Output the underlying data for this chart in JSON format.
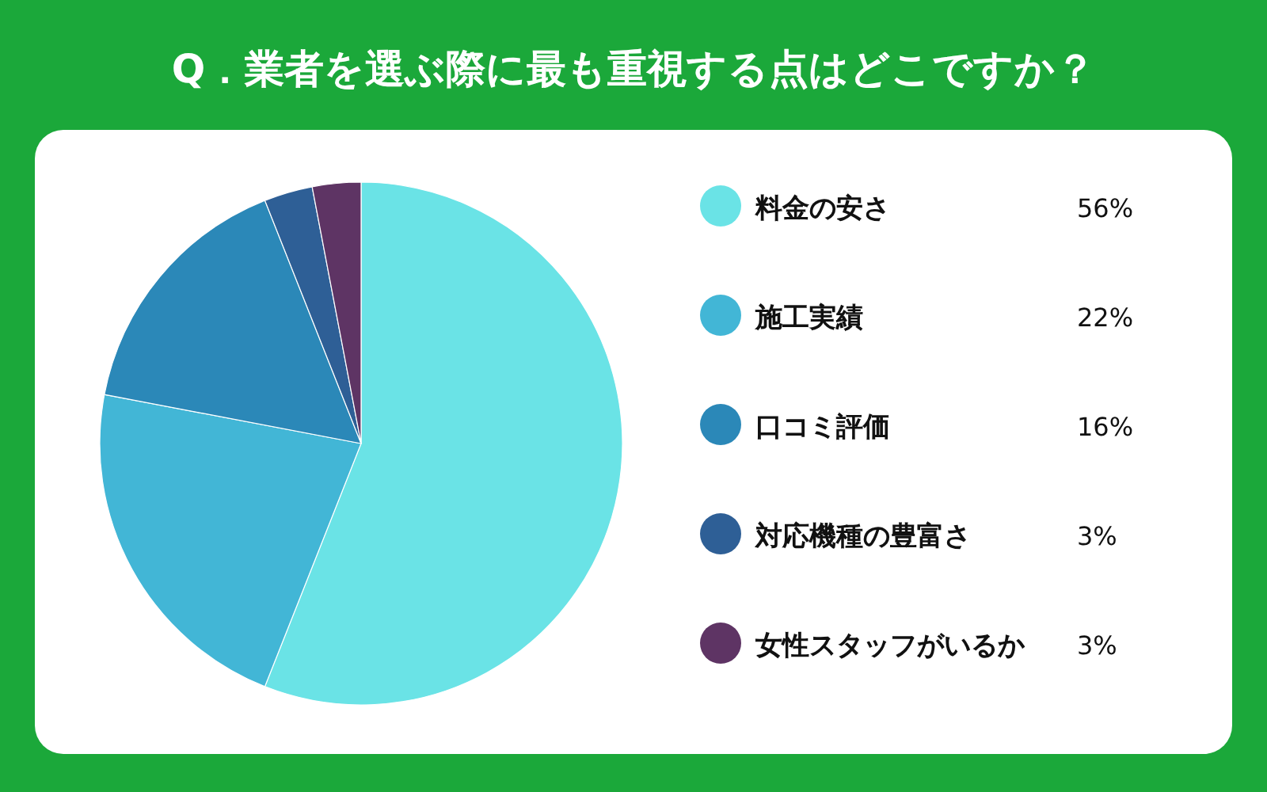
{
  "chart_data": {
    "type": "pie",
    "title": "Q．業者を選ぶ際に最も重視する点はどこですか？",
    "categories": [
      "料金の安さ",
      "施工実績",
      "口コミ評価",
      "対応機種の豊富さ",
      "女性スタッフがいるか"
    ],
    "values": [
      56,
      22,
      16,
      3,
      3
    ],
    "colors": [
      "#6ae3e6",
      "#42b6d6",
      "#2b88b8",
      "#2e5f96",
      "#5e3464"
    ],
    "value_labels": [
      "56%",
      "22%",
      "16%",
      "3%",
      "3%"
    ],
    "legend": "right"
  }
}
